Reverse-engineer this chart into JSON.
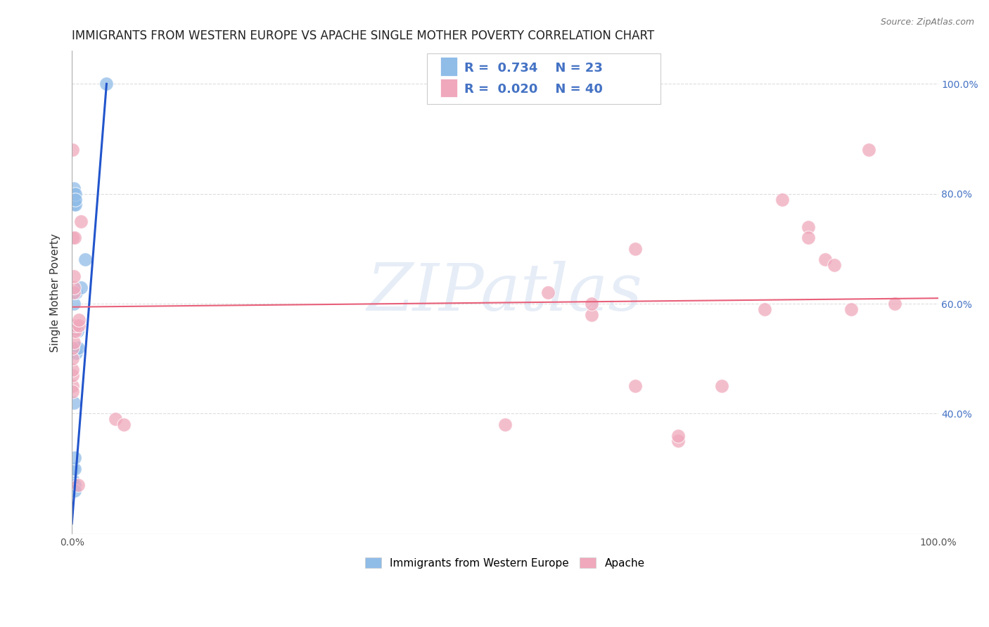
{
  "title": "IMMIGRANTS FROM WESTERN EUROPE VS APACHE SINGLE MOTHER POVERTY CORRELATION CHART",
  "source": "Source: ZipAtlas.com",
  "ylabel": "Single Mother Poverty",
  "legend_r_blue": "R = 0.734",
  "legend_n_blue": "N = 23",
  "legend_r_pink": "R = 0.020",
  "legend_n_pink": "N = 40",
  "blue_scatter": [
    [
      0.1,
      28
    ],
    [
      0.1,
      30
    ],
    [
      0.2,
      80
    ],
    [
      0.2,
      81
    ],
    [
      0.2,
      78
    ],
    [
      0.25,
      79
    ],
    [
      0.2,
      60
    ],
    [
      0.2,
      42
    ],
    [
      0.3,
      30
    ],
    [
      0.3,
      32
    ],
    [
      0.3,
      27
    ],
    [
      0.3,
      26
    ],
    [
      0.4,
      78
    ],
    [
      0.4,
      80
    ],
    [
      0.4,
      79
    ],
    [
      0.5,
      62
    ],
    [
      0.5,
      52
    ],
    [
      0.5,
      51
    ],
    [
      0.6,
      55
    ],
    [
      0.7,
      52
    ],
    [
      1.0,
      63
    ],
    [
      1.5,
      68
    ],
    [
      4.0,
      100
    ]
  ],
  "pink_scatter": [
    [
      0.1,
      45
    ],
    [
      0.1,
      44
    ],
    [
      0.1,
      47
    ],
    [
      0.1,
      48
    ],
    [
      0.1,
      50
    ],
    [
      0.1,
      52
    ],
    [
      0.1,
      72
    ],
    [
      0.1,
      88
    ],
    [
      0.2,
      62
    ],
    [
      0.2,
      63
    ],
    [
      0.2,
      65
    ],
    [
      0.2,
      55
    ],
    [
      0.2,
      53
    ],
    [
      0.3,
      72
    ],
    [
      0.4,
      55
    ],
    [
      0.4,
      56
    ],
    [
      0.7,
      27
    ],
    [
      0.8,
      56
    ],
    [
      0.8,
      57
    ],
    [
      1.0,
      75
    ],
    [
      5.0,
      39
    ],
    [
      6.0,
      38
    ],
    [
      50,
      38
    ],
    [
      55,
      62
    ],
    [
      60,
      58
    ],
    [
      60,
      60
    ],
    [
      65,
      45
    ],
    [
      65,
      70
    ],
    [
      70,
      35
    ],
    [
      70,
      36
    ],
    [
      75,
      45
    ],
    [
      80,
      59
    ],
    [
      82,
      79
    ],
    [
      85,
      74
    ],
    [
      85,
      72
    ],
    [
      87,
      68
    ],
    [
      88,
      67
    ],
    [
      90,
      59
    ],
    [
      92,
      88
    ],
    [
      95,
      60
    ]
  ],
  "blue_line_x": [
    0.0,
    4.0
  ],
  "blue_line_y": [
    20,
    100
  ],
  "pink_line_x": [
    0.0,
    100.0
  ],
  "pink_line_y": [
    59.4,
    61.0
  ],
  "watermark": "ZIPatlas",
  "xlim": [
    0,
    100
  ],
  "ylim": [
    18,
    106
  ],
  "x_ticks": [
    0,
    20,
    40,
    60,
    80,
    100
  ],
  "x_tick_labels": [
    "0.0%",
    "",
    "",
    "",
    "",
    "100.0%"
  ],
  "y_ticks_right": [
    40,
    60,
    80,
    100
  ],
  "y_tick_labels_right": [
    "40.0%",
    "60.0%",
    "80.0%",
    "100.0%"
  ],
  "background_color": "#ffffff",
  "grid_color": "#dddddd",
  "scatter_size": 200,
  "blue_color": "#90bce8",
  "pink_color": "#f0a8bc",
  "blue_line_color": "#2255cc",
  "pink_line_color": "#e8607a",
  "title_fontsize": 12,
  "axis_label_fontsize": 11,
  "right_tick_color": "#4472c4"
}
